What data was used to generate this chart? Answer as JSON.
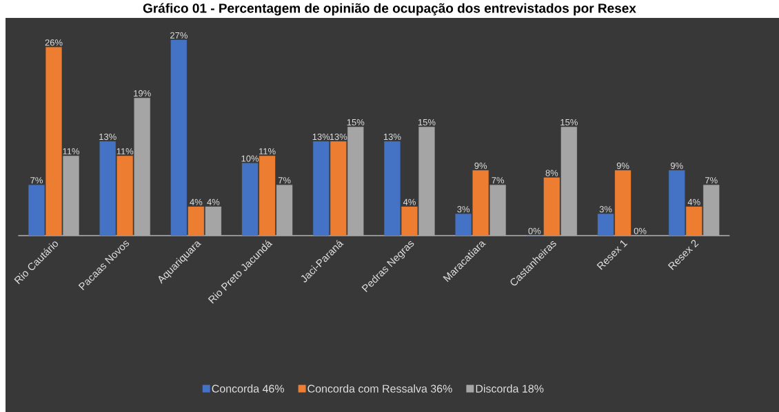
{
  "chart_data": {
    "type": "bar",
    "title": "Gráfico 01 - Percentagem de opinião de ocupação dos entrevistados por Resex",
    "categories": [
      "Rio Cautário",
      "Pacaas Novos",
      "Aquariquara",
      "Rio Preto Jacundá",
      "Jaci-Paraná",
      "Pedras Negras",
      "Maracatiara",
      "Castanheiras",
      "Resex 1",
      "Resex 2"
    ],
    "series": [
      {
        "name": "Concorda  46%",
        "color": "#4472c4",
        "values": [
          7,
          13,
          27,
          10,
          13,
          13,
          3,
          0,
          3,
          9
        ],
        "value_labels": [
          "7%",
          "13%",
          "27%",
          "10%",
          "13%",
          "13%",
          "3%",
          "0%",
          "3%",
          "9%"
        ]
      },
      {
        "name": "Concorda com Ressalva   36%",
        "color": "#ed7d31",
        "values": [
          26,
          11,
          4,
          11,
          13,
          4,
          9,
          8,
          9,
          4
        ],
        "value_labels": [
          "26%",
          "11%",
          "4%",
          "11%",
          "13%",
          "4%",
          "9%",
          "8%",
          "9%",
          "4%"
        ]
      },
      {
        "name": "Discorda   18%",
        "color": "#a5a5a5",
        "values": [
          11,
          19,
          4,
          7,
          15,
          15,
          7,
          15,
          0,
          7
        ],
        "value_labels": [
          "11%",
          "19%",
          "4%",
          "7%",
          "15%",
          "15%",
          "7%",
          "15%",
          "0%",
          "7%"
        ]
      }
    ],
    "legend": "bottom"
  }
}
